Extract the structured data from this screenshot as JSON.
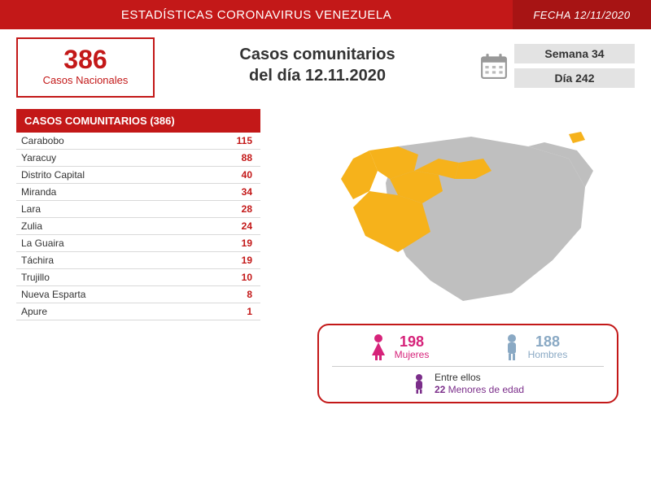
{
  "colors": {
    "primary_red": "#c31818",
    "header_right_red": "#a71414",
    "dark_text": "#333333",
    "map_highlight": "#f6b21b",
    "map_neutral": "#bfbfbf",
    "week_box_bg": "#e3e3e3",
    "week_box_text": "#333333",
    "gender_border": "#c31818",
    "female_pink": "#d6237a",
    "male_blue": "#8aa9c4",
    "minor_purple": "#7b2e8a",
    "row_border": "#d9d9d9"
  },
  "header": {
    "title": "ESTADÍSTICAS CORONAVIRUS VENEZUELA",
    "date_label": "FECHA 12/11/2020"
  },
  "national": {
    "count": "386",
    "label": "Casos Nacionales"
  },
  "main_title": {
    "line1": "Casos comunitarios",
    "line2": "del día 12.11.2020"
  },
  "period": {
    "week": "Semana 34",
    "day": "Día 242"
  },
  "table": {
    "header": "CASOS COMUNITARIOS (386)",
    "rows": [
      {
        "name": "Carabobo",
        "value": "115"
      },
      {
        "name": "Yaracuy",
        "value": "88"
      },
      {
        "name": "Distrito Capital",
        "value": "40"
      },
      {
        "name": "Miranda",
        "value": "34"
      },
      {
        "name": "Lara",
        "value": "28"
      },
      {
        "name": "Zulia",
        "value": "24"
      },
      {
        "name": "La Guaira",
        "value": "19"
      },
      {
        "name": "Táchira",
        "value": "19"
      },
      {
        "name": "Trujillo",
        "value": "10"
      },
      {
        "name": "Nueva Esparta",
        "value": "8"
      },
      {
        "name": "Apure",
        "value": "1"
      }
    ]
  },
  "gender": {
    "female_count": "198",
    "female_label": "Mujeres",
    "male_count": "188",
    "male_label": "Hombres",
    "minors_line1": "Entre ellos",
    "minors_count": "22",
    "minors_label": "Menores de edad"
  }
}
